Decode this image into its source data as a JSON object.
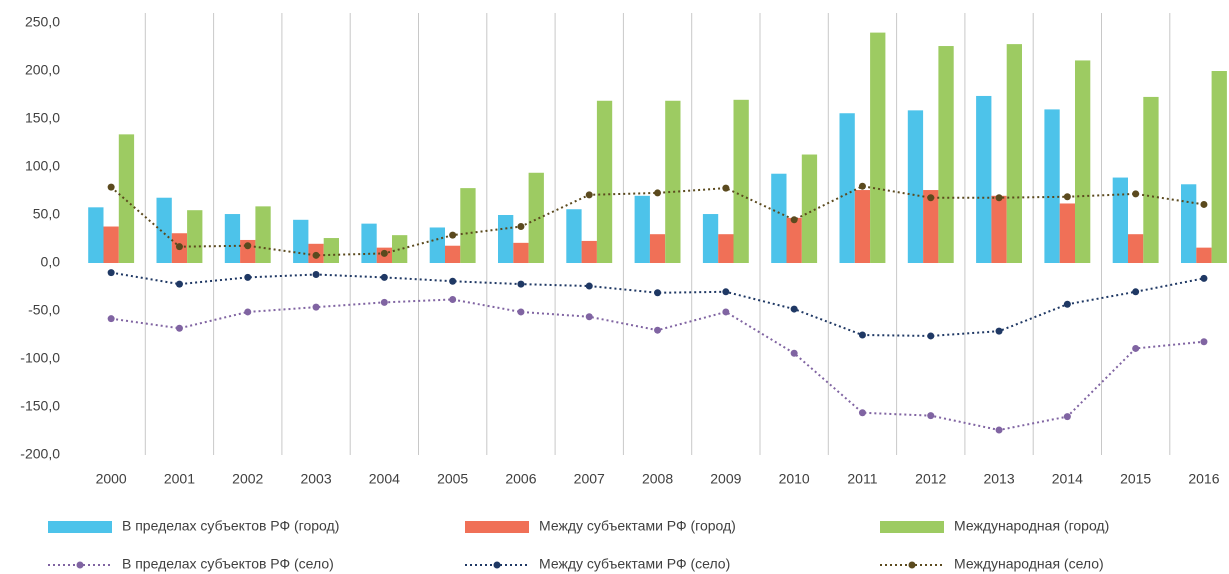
{
  "chart_data": {
    "type": "bar_line",
    "categories": [
      "2000",
      "2001",
      "2002",
      "2003",
      "2004",
      "2005",
      "2006",
      "2007",
      "2008",
      "2009",
      "2010",
      "2011",
      "2012",
      "2013",
      "2014",
      "2015",
      "2016"
    ],
    "series": [
      {
        "name": "В пределах субъектов РФ (город)",
        "kind": "bar",
        "color": "#4dc3ea",
        "values": [
          58,
          68,
          51,
          45,
          41,
          37,
          50,
          56,
          70,
          51,
          93,
          156,
          159,
          174,
          160,
          89,
          82
        ]
      },
      {
        "name": "Между субъектами РФ (город)",
        "kind": "bar",
        "color": "#f07057",
        "values": [
          38,
          31,
          24,
          20,
          16,
          18,
          21,
          23,
          30,
          30,
          47,
          76,
          76,
          70,
          62,
          30,
          16
        ]
      },
      {
        "name": "Международная (город)",
        "kind": "bar",
        "color": "#9dcb62",
        "values": [
          134,
          55,
          59,
          26,
          29,
          78,
          94,
          169,
          169,
          170,
          113,
          240,
          226,
          228,
          211,
          173,
          200
        ]
      },
      {
        "name": "В пределах субъектов РФ (село)",
        "kind": "line",
        "color": "#8064a2",
        "values": [
          -58,
          -68,
          -51,
          -46,
          -41,
          -38,
          -51,
          -56,
          -70,
          -51,
          -94,
          -156,
          -159,
          -174,
          -160,
          -89,
          -82
        ]
      },
      {
        "name": "Между субъектами РФ (село)",
        "kind": "line",
        "color": "#1f3864",
        "values": [
          -10,
          -22,
          -15,
          -12,
          -15,
          -19,
          -22,
          -24,
          -31,
          -30,
          -48,
          -75,
          -76,
          -71,
          -43,
          -30,
          -16
        ]
      },
      {
        "name": "Международная (село)",
        "kind": "line",
        "color": "#5b4a1e",
        "values": [
          79,
          17,
          18,
          8,
          10,
          29,
          38,
          71,
          73,
          78,
          45,
          80,
          68,
          68,
          69,
          72,
          61
        ]
      }
    ],
    "ylim": [
      -200,
      250
    ],
    "yticks": [
      {
        "value": -200,
        "label": "-200,0"
      },
      {
        "value": -150,
        "label": "-150,0"
      },
      {
        "value": -100,
        "label": "-100,0"
      },
      {
        "value": -50,
        "label": "-50,0"
      },
      {
        "value": 0,
        "label": "0,0"
      },
      {
        "value": 50,
        "label": "50,0"
      },
      {
        "value": 100,
        "label": "100,0"
      },
      {
        "value": 150,
        "label": "150,0"
      },
      {
        "value": 200,
        "label": "200,0"
      },
      {
        "value": 250,
        "label": "250,0"
      }
    ],
    "grid": "vertical"
  }
}
